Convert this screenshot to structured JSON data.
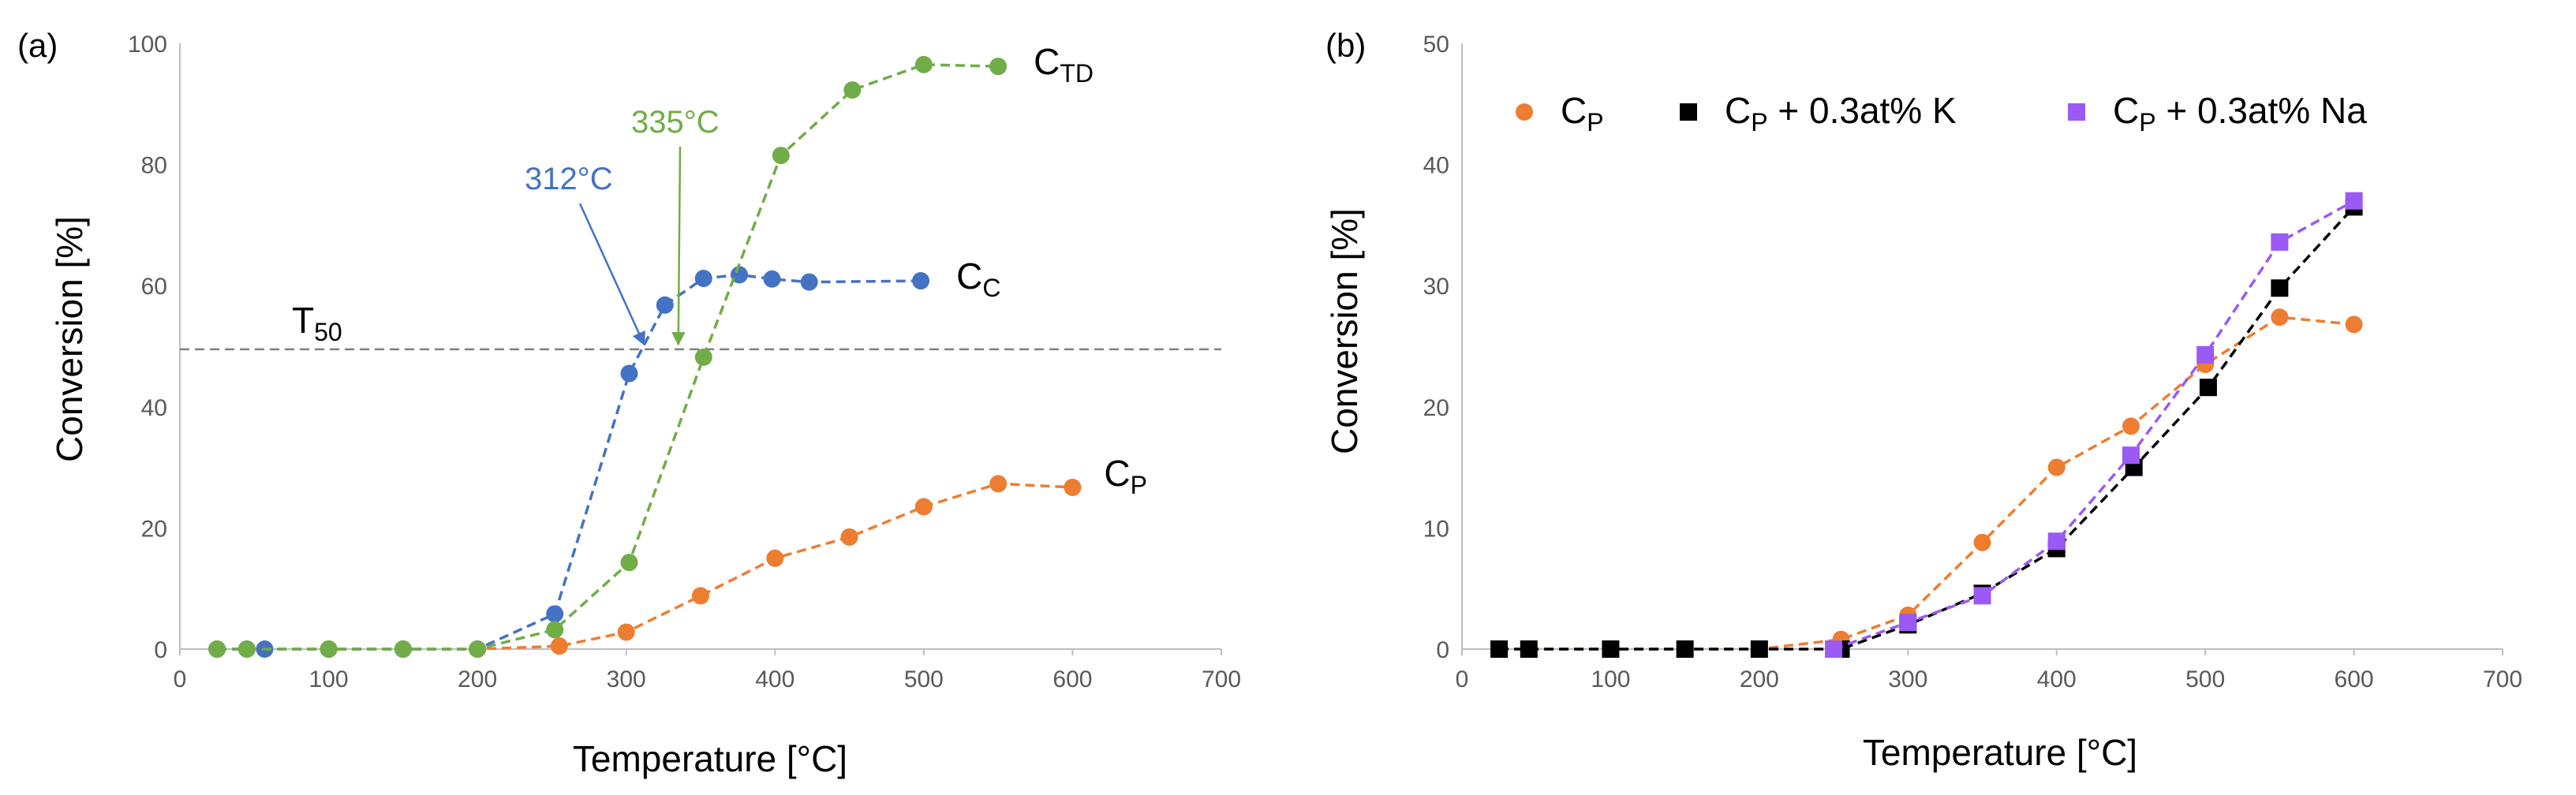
{
  "colors": {
    "orange": "#ED7D31",
    "blue": "#4472C4",
    "green": "#70AD47",
    "black": "#000000",
    "purple": "#9B59F5",
    "axis": "#BFBFBF",
    "t50": "#7F7F7F"
  },
  "chart_data": [
    {
      "type": "scatter",
      "panel_label": "(a)",
      "xlabel": "Temperature [°C]",
      "ylabel": "Conversion [%]",
      "xlim": [
        0,
        700
      ],
      "ylim": [
        0,
        100
      ],
      "xticks": [
        0,
        100,
        200,
        300,
        400,
        500,
        600,
        700
      ],
      "yticks": [
        0,
        20,
        40,
        60,
        80,
        100
      ],
      "grid": false,
      "series": [
        {
          "name": "Cp",
          "label_main": "C",
          "label_sub": "P",
          "color": "#ED7D31",
          "marker": "circle",
          "x": [
            25,
            45,
            100,
            150,
            200,
            255,
            300,
            350,
            400,
            450,
            500,
            550,
            600
          ],
          "y": [
            0,
            0,
            0,
            0,
            0,
            0.5,
            2.8,
            8.8,
            15,
            18.5,
            23.5,
            27.3,
            26.7
          ]
        },
        {
          "name": "Cc",
          "label_main": "C",
          "label_sub": "C",
          "color": "#4472C4",
          "marker": "circle",
          "x": [
            25,
            45,
            57,
            100,
            150,
            200,
            252,
            302,
            326,
            352,
            376,
            398,
            423,
            498
          ],
          "y": [
            0,
            0,
            0,
            0,
            0,
            0,
            5.8,
            45.5,
            56.8,
            61.2,
            61.8,
            61.1,
            60.6,
            60.8
          ]
        },
        {
          "name": "CTD",
          "label_main": "C",
          "label_sub": "TD",
          "color": "#70AD47",
          "marker": "circle",
          "x": [
            25,
            45,
            100,
            150,
            200,
            252,
            302,
            352,
            404,
            452,
            500,
            550
          ],
          "y": [
            0,
            0,
            0,
            0,
            0,
            3.2,
            14.3,
            48.2,
            81.5,
            92.3,
            96.5,
            96.2
          ]
        }
      ],
      "reference_line": {
        "label_main": "T",
        "label_sub": "50",
        "y": 49.5
      },
      "annotations": [
        {
          "text": "312°C",
          "color": "#4472C4",
          "target_x": 312,
          "target_y": 49.5
        },
        {
          "text": "335°C",
          "color": "#70AD47",
          "target_x": 335,
          "target_y": 49.5
        }
      ]
    },
    {
      "type": "scatter",
      "panel_label": "(b)",
      "xlabel": "Temperature [°C]",
      "ylabel": "Conversion [%]",
      "xlim": [
        0,
        700
      ],
      "ylim": [
        0,
        50
      ],
      "xticks": [
        0,
        100,
        200,
        300,
        400,
        500,
        600,
        700
      ],
      "yticks": [
        0,
        10,
        20,
        30,
        40,
        50
      ],
      "grid": false,
      "legend": "top",
      "series": [
        {
          "name": "Cp",
          "legend_main": "C",
          "legend_sub": "P",
          "legend_suffix": "",
          "color": "#ED7D31",
          "marker": "circle",
          "x": [
            25,
            45,
            100,
            150,
            200,
            255,
            300,
            350,
            400,
            450,
            500,
            550,
            600
          ],
          "y": [
            0,
            0,
            0,
            0,
            0,
            0.8,
            2.8,
            8.8,
            15,
            18.4,
            23.5,
            27.4,
            26.8
          ]
        },
        {
          "name": "Cp + 0.3at% K",
          "legend_main": "C",
          "legend_sub": "P",
          "legend_suffix": " + 0.3at% K",
          "color": "#000000",
          "marker": "square",
          "x": [
            25,
            45,
            100,
            150,
            200,
            255,
            300,
            350,
            400,
            452,
            502,
            550,
            600
          ],
          "y": [
            0,
            0,
            0,
            0,
            0,
            0,
            2,
            4.6,
            8.3,
            15,
            21.6,
            29.8,
            36.5
          ]
        },
        {
          "name": "Cp + 0.3at% Na",
          "legend_main": "C",
          "legend_sub": "P",
          "legend_suffix": " + 0.3at% Na",
          "color": "#9B59F5",
          "marker": "square",
          "x": [
            250,
            300,
            350,
            400,
            450,
            500,
            550,
            600
          ],
          "y": [
            0,
            2.2,
            4.4,
            8.9,
            16,
            24.3,
            33.6,
            37
          ]
        }
      ]
    }
  ]
}
